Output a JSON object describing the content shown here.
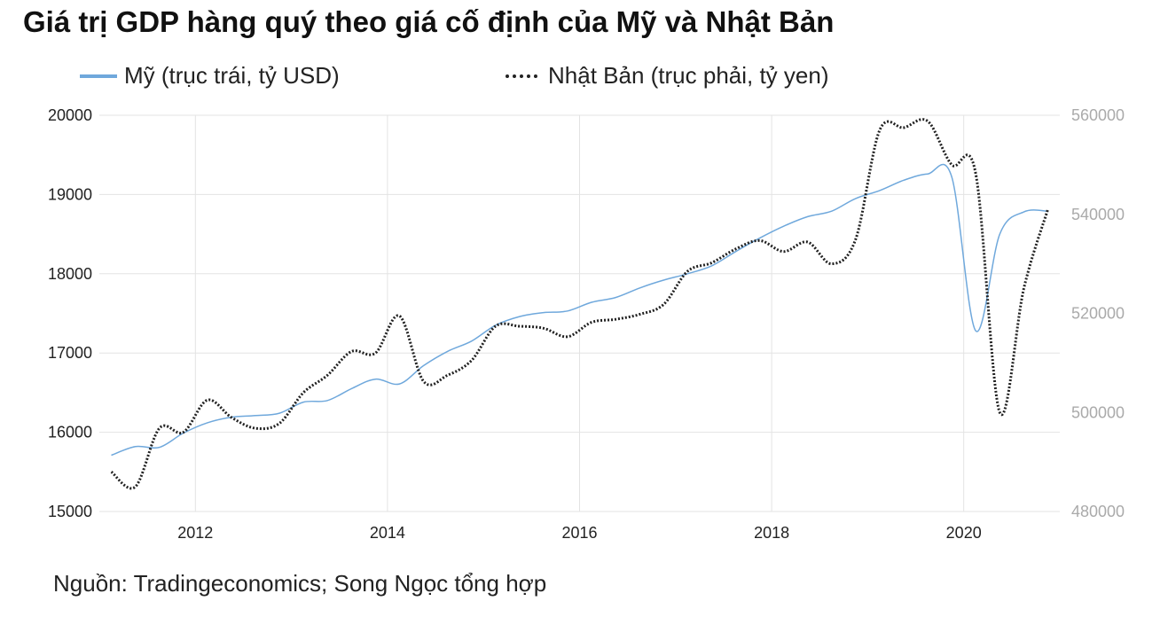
{
  "title": "Giá trị GDP hàng quý theo giá cố định của Mỹ và Nhật Bản",
  "legend": {
    "us_label": "Mỹ (trục trái, tỷ USD)",
    "jp_label": "Nhật Bản (trục phải, tỷ yen)"
  },
  "source": "Nguồn: Tradingeconomics; Song Ngọc tổng hợp",
  "chart_data": {
    "type": "line",
    "left_axis": {
      "ylim": [
        15000,
        20000
      ],
      "ticks": [
        "15000",
        "16000",
        "17000",
        "18000",
        "19000",
        "20000"
      ]
    },
    "right_axis": {
      "ylim": [
        480000,
        560000
      ],
      "ticks": [
        "480000",
        "500000",
        "520000",
        "540000",
        "560000"
      ]
    },
    "x_ticks": [
      "2012",
      "2014",
      "2016",
      "2018",
      "2020"
    ],
    "grid": true,
    "legend_position": "top",
    "series": [
      {
        "name": "Mỹ (trục trái, tỷ USD)",
        "axis": "left",
        "color": "#6fa8dc",
        "style": "solid",
        "x": [
          2011.0,
          2011.25,
          2011.5,
          2011.75,
          2012.0,
          2012.25,
          2012.5,
          2012.75,
          2013.0,
          2013.25,
          2013.5,
          2013.75,
          2014.0,
          2014.25,
          2014.5,
          2014.75,
          2015.0,
          2015.25,
          2015.5,
          2015.75,
          2016.0,
          2016.25,
          2016.5,
          2016.75,
          2017.0,
          2017.25,
          2017.5,
          2017.75,
          2018.0,
          2018.25,
          2018.5,
          2018.75,
          2019.0,
          2019.25,
          2019.5,
          2019.75,
          2020.0,
          2020.25,
          2020.5,
          2020.75
        ],
        "values": [
          15710,
          15820,
          15810,
          15990,
          16120,
          16190,
          16210,
          16240,
          16380,
          16400,
          16550,
          16670,
          16610,
          16840,
          17020,
          17150,
          17350,
          17460,
          17510,
          17530,
          17640,
          17700,
          17820,
          17920,
          18000,
          18100,
          18280,
          18450,
          18600,
          18720,
          18790,
          18950,
          19050,
          19180,
          19260,
          19220,
          17280,
          18500,
          18780,
          18790
        ]
      },
      {
        "name": "Nhật Bản (trục phải, tỷ yen)",
        "axis": "right",
        "color": "#222222",
        "style": "dotted",
        "x": [
          2011.0,
          2011.25,
          2011.5,
          2011.75,
          2012.0,
          2012.25,
          2012.5,
          2012.75,
          2013.0,
          2013.25,
          2013.5,
          2013.75,
          2014.0,
          2014.25,
          2014.5,
          2014.75,
          2015.0,
          2015.25,
          2015.5,
          2015.75,
          2016.0,
          2016.25,
          2016.5,
          2016.75,
          2017.0,
          2017.25,
          2017.5,
          2017.75,
          2018.0,
          2018.25,
          2018.5,
          2018.75,
          2019.0,
          2019.25,
          2019.5,
          2019.75,
          2020.0,
          2020.25,
          2020.5,
          2020.75
        ],
        "values": [
          488000,
          485000,
          496800,
          496000,
          502500,
          499000,
          496800,
          497800,
          504000,
          507500,
          512300,
          512000,
          519500,
          506300,
          507500,
          510500,
          517400,
          517400,
          517000,
          515300,
          518200,
          518800,
          519800,
          521800,
          528500,
          530200,
          533000,
          534700,
          532500,
          534400,
          530000,
          535000,
          557000,
          557500,
          558800,
          550000,
          548200,
          500000,
          525000,
          541000
        ]
      }
    ]
  }
}
